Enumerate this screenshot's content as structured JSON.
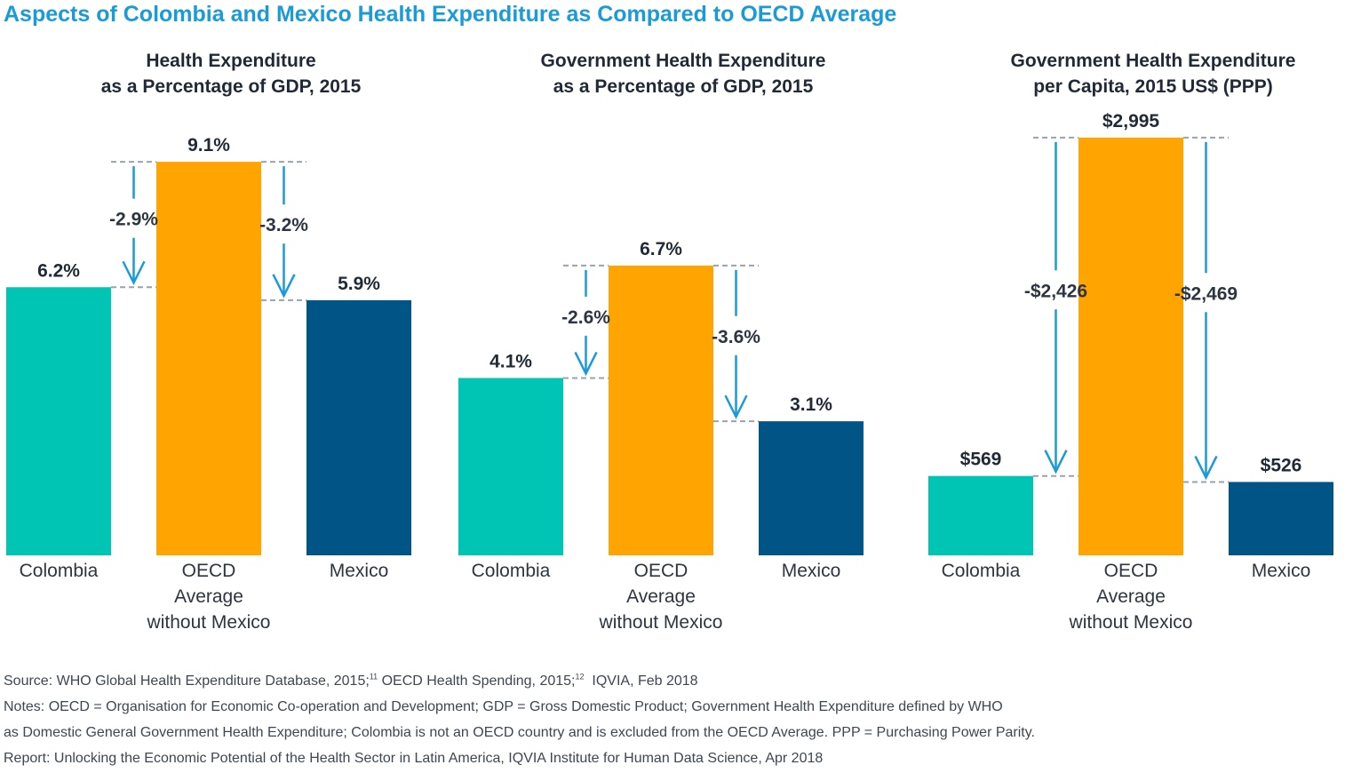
{
  "title": "Aspects of Colombia and Mexico Health Expenditure as Compared to OECD Average",
  "colors": {
    "colombia": "#00c4b4",
    "oecd": "#ffa400",
    "mexico": "#005587",
    "arrow": "#1a9bd7",
    "dashed": "#9aa3ad",
    "title": "#1a9bd7"
  },
  "chart_data": [
    {
      "type": "bar",
      "title_lines": [
        "Health Expenditure",
        "as a Percentage of GDP, 2015"
      ],
      "categories": [
        [
          "Colombia"
        ],
        [
          "OECD",
          "Average",
          "without Mexico"
        ],
        [
          "Mexico"
        ]
      ],
      "values": [
        6.2,
        9.1,
        5.9
      ],
      "value_labels": [
        "6.2%",
        "9.1%",
        "5.9%"
      ],
      "differences": [
        {
          "from": 1,
          "to": 0,
          "label": "-2.9%"
        },
        {
          "from": 1,
          "to": 2,
          "label": "-3.2%"
        }
      ],
      "ylim": [
        0,
        10.52
      ]
    },
    {
      "type": "bar",
      "title_lines": [
        "Government Health Expenditure",
        "as a Percentage of GDP, 2015"
      ],
      "categories": [
        [
          "Colombia"
        ],
        [
          "OECD",
          "Average",
          "without Mexico"
        ],
        [
          "Mexico"
        ]
      ],
      "values": [
        4.1,
        6.7,
        3.1
      ],
      "value_labels": [
        "4.1%",
        "6.7%",
        "3.1%"
      ],
      "differences": [
        {
          "from": 1,
          "to": 0,
          "label": "-2.6%"
        },
        {
          "from": 1,
          "to": 2,
          "label": "-3.6%"
        }
      ],
      "ylim": [
        0,
        10.52
      ]
    },
    {
      "type": "bar",
      "title_lines": [
        "Government Health Expenditure",
        "per Capita, 2015 US$ (PPP)"
      ],
      "categories": [
        [
          "Colombia"
        ],
        [
          "OECD",
          "Average",
          "without Mexico"
        ],
        [
          "Mexico"
        ]
      ],
      "values": [
        569,
        2995,
        526
      ],
      "value_labels": [
        "$569",
        "$2,995",
        "$526"
      ],
      "differences": [
        {
          "from": 1,
          "to": 0,
          "label": "-$2,426"
        },
        {
          "from": 1,
          "to": 2,
          "label": "-$2,469"
        }
      ],
      "ylim": [
        0,
        3262
      ]
    }
  ],
  "footnotes": {
    "source_a": "Source: WHO Global Health Expenditure Database, 2015;",
    "source_sup1": "11",
    "source_b": " OECD Health Spending, 2015;",
    "source_sup2": "12",
    "source_c": "  IQVIA, Feb 2018",
    "notes_line1": "Notes: OECD = Organisation for Economic Co-operation and Development; GDP = Gross Domestic Product; Government Health Expenditure defined by WHO",
    "notes_line2": "as Domestic General Government Health Expenditure; Colombia is not an OECD country and is excluded from the OECD Average. PPP = Purchasing Power Parity.",
    "report": "Report: Unlocking the Economic Potential of the Health Sector in Latin America, IQVIA Institute for Human Data Science, Apr 2018"
  }
}
